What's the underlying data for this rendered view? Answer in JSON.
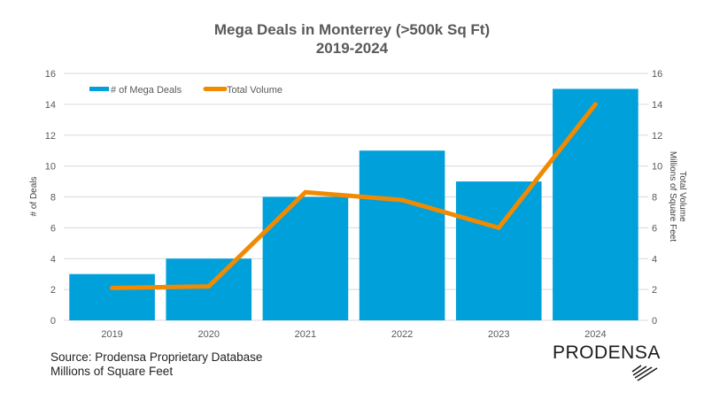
{
  "chart_data": {
    "type": "bar",
    "title": "Mega Deals in Monterrey (>500k Sq Ft)",
    "subtitle": "2019-2024",
    "categories": [
      "2019",
      "2020",
      "2021",
      "2022",
      "2023",
      "2024"
    ],
    "series": [
      {
        "name": "# of Mega Deals",
        "type": "bar",
        "axis": "left",
        "color": "#00A0DA",
        "values": [
          3,
          4,
          8,
          11,
          9,
          15
        ]
      },
      {
        "name": "Total Volume",
        "type": "line",
        "axis": "right",
        "color": "#F08A00",
        "values": [
          2.1,
          2.2,
          8.3,
          7.8,
          6.0,
          14.0
        ]
      }
    ],
    "ylabel": "# of Deals",
    "y2label": [
      "Total Volume",
      "Millions of Square Feet"
    ],
    "ylim": [
      0,
      16
    ],
    "y2lim": [
      0,
      16
    ],
    "yticks": [
      "0",
      "2",
      "4",
      "6",
      "8",
      "10",
      "12",
      "14",
      "16"
    ],
    "y2ticks": [
      "0",
      "2",
      "4",
      "6",
      "8",
      "10",
      "12",
      "14",
      "16"
    ],
    "grid": true,
    "legend_position": "top-left"
  },
  "footer": {
    "source": "Source: Prodensa Proprietary Database",
    "units": "Millions of Square Feet"
  },
  "brand": {
    "name": "PRODENSA"
  }
}
